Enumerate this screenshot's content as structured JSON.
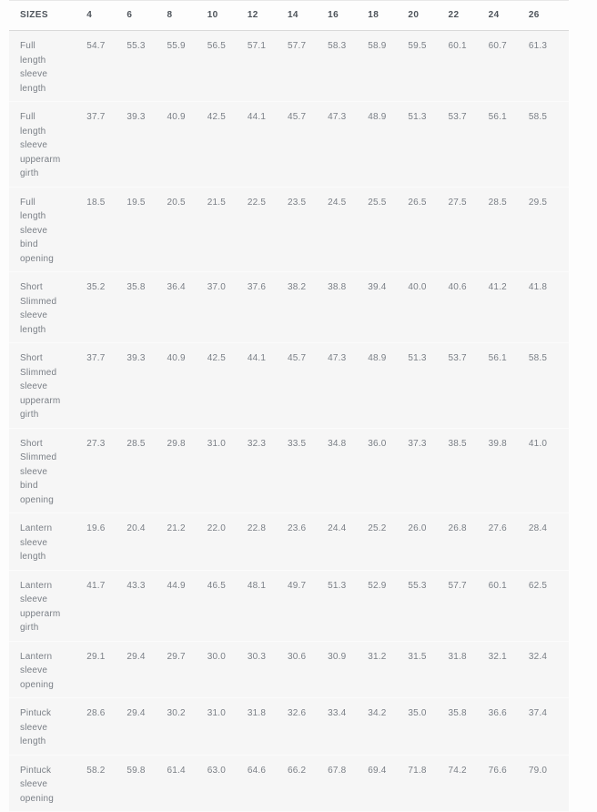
{
  "chart_data": {
    "type": "table",
    "title": "SIZES",
    "columns": [
      "4",
      "6",
      "8",
      "10",
      "12",
      "14",
      "16",
      "18",
      "20",
      "22",
      "24",
      "26"
    ],
    "rows": [
      {
        "label": "Full length sleeve length",
        "values": [
          "54.7",
          "55.3",
          "55.9",
          "56.5",
          "57.1",
          "57.7",
          "58.3",
          "58.9",
          "59.5",
          "60.1",
          "60.7",
          "61.3"
        ]
      },
      {
        "label": "Full length sleeve upperarm girth",
        "values": [
          "37.7",
          "39.3",
          "40.9",
          "42.5",
          "44.1",
          "45.7",
          "47.3",
          "48.9",
          "51.3",
          "53.7",
          "56.1",
          "58.5"
        ]
      },
      {
        "label": "Full length sleeve bind opening",
        "values": [
          "18.5",
          "19.5",
          "20.5",
          "21.5",
          "22.5",
          "23.5",
          "24.5",
          "25.5",
          "26.5",
          "27.5",
          "28.5",
          "29.5"
        ]
      },
      {
        "label": "Short Slimmed sleeve length",
        "values": [
          "35.2",
          "35.8",
          "36.4",
          "37.0",
          "37.6",
          "38.2",
          "38.8",
          "39.4",
          "40.0",
          "40.6",
          "41.2",
          "41.8"
        ]
      },
      {
        "label": "Short Slimmed sleeve upperarm girth",
        "values": [
          "37.7",
          "39.3",
          "40.9",
          "42.5",
          "44.1",
          "45.7",
          "47.3",
          "48.9",
          "51.3",
          "53.7",
          "56.1",
          "58.5"
        ]
      },
      {
        "label": "Short Slimmed sleeve bind opening",
        "values": [
          "27.3",
          "28.5",
          "29.8",
          "31.0",
          "32.3",
          "33.5",
          "34.8",
          "36.0",
          "37.3",
          "38.5",
          "39.8",
          "41.0"
        ]
      },
      {
        "label": "Lantern sleeve length",
        "values": [
          "19.6",
          "20.4",
          "21.2",
          "22.0",
          "22.8",
          "23.6",
          "24.4",
          "25.2",
          "26.0",
          "26.8",
          "27.6",
          "28.4"
        ]
      },
      {
        "label": "Lantern sleeve upperarm girth",
        "values": [
          "41.7",
          "43.3",
          "44.9",
          "46.5",
          "48.1",
          "49.7",
          "51.3",
          "52.9",
          "55.3",
          "57.7",
          "60.1",
          "62.5"
        ]
      },
      {
        "label": "Lantern sleeve opening",
        "values": [
          "29.1",
          "29.4",
          "29.7",
          "30.0",
          "30.3",
          "30.6",
          "30.9",
          "31.2",
          "31.5",
          "31.8",
          "32.1",
          "32.4"
        ]
      },
      {
        "label": "Pintuck sleeve length",
        "values": [
          "28.6",
          "29.4",
          "30.2",
          "31.0",
          "31.8",
          "32.6",
          "33.4",
          "34.2",
          "35.0",
          "35.8",
          "36.6",
          "37.4"
        ]
      },
      {
        "label": "Pintuck sleeve opening",
        "values": [
          "58.2",
          "59.8",
          "61.4",
          "63.0",
          "64.6",
          "66.2",
          "67.8",
          "69.4",
          "71.8",
          "74.2",
          "76.6",
          "79.0"
        ]
      }
    ],
    "layout": {
      "header_background": "#fdfdfd",
      "row_background": "#f6f6f6",
      "header_text_color": "#4e545b",
      "body_text_color": "#7a7f86",
      "separator_color": "#d9d9d9"
    }
  }
}
